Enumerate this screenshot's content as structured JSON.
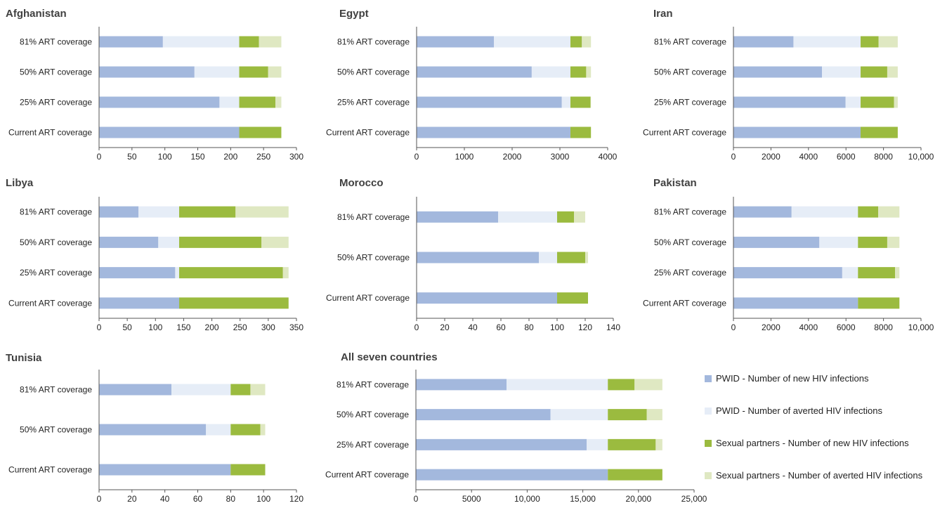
{
  "colors": {
    "pwid_new": "#a3b8dd",
    "pwid_averted": "#e6edf7",
    "sp_new": "#9bbb3f",
    "sp_averted": "#dfe8c2",
    "axis": "#555555"
  },
  "legend": [
    {
      "label": "PWID - Number of new HIV infections",
      "color_key": "pwid_new"
    },
    {
      "label": "PWID - Number of averted HIV infections",
      "color_key": "pwid_averted"
    },
    {
      "label": "Sexual partners - Number of new HIV infections",
      "color_key": "sp_new"
    },
    {
      "label": "Sexual partners - Number of averted HIV infections",
      "color_key": "sp_averted"
    }
  ],
  "chart_data": [
    {
      "type": "bar",
      "title": "Afghanistan",
      "orientation": "horizontal-stacked",
      "categories": [
        "81% ART coverage",
        "50% ART coverage",
        "25% ART coverage",
        "Current ART coverage"
      ],
      "series": [
        {
          "name": "PWID - Number of new HIV infections",
          "values": [
            97,
            145,
            183,
            213
          ]
        },
        {
          "name": "PWID - Number of averted HIV infections",
          "values": [
            116,
            68,
            30,
            0
          ]
        },
        {
          "name": "Sexual partners - Number of new HIV infections",
          "values": [
            30,
            44,
            55,
            64
          ]
        },
        {
          "name": "Sexual partners - Number of averted HIV infections",
          "values": [
            34,
            20,
            9,
            0
          ]
        }
      ],
      "xlim": [
        0,
        300
      ],
      "ticks": [
        "0",
        "50",
        "100",
        "150",
        "200",
        "250",
        "300"
      ]
    },
    {
      "type": "bar",
      "title": "Egypt",
      "orientation": "horizontal-stacked",
      "categories": [
        "81% ART coverage",
        "50% ART coverage",
        "25% ART coverage",
        "Current ART coverage"
      ],
      "series": [
        {
          "name": "PWID - Number of new HIV infections",
          "values": [
            1620,
            2410,
            3040,
            3220
          ]
        },
        {
          "name": "PWID - Number of averted HIV infections",
          "values": [
            1600,
            810,
            180,
            0
          ]
        },
        {
          "name": "Sexual partners - Number of new HIV infections",
          "values": [
            240,
            330,
            420,
            430
          ]
        },
        {
          "name": "Sexual partners - Number of averted HIV infections",
          "values": [
            190,
            100,
            10,
            0
          ]
        }
      ],
      "xlim": [
        0,
        4000
      ],
      "ticks": [
        "0",
        "1000",
        "2000",
        "3000",
        "4000"
      ]
    },
    {
      "type": "bar",
      "title": "Iran",
      "orientation": "horizontal-stacked",
      "categories": [
        "81% ART coverage",
        "50% ART coverage",
        "25% ART coverage",
        "Current ART coverage"
      ],
      "series": [
        {
          "name": "PWID - Number of new HIV infections",
          "values": [
            3200,
            4720,
            5980,
            6780
          ]
        },
        {
          "name": "PWID - Number of averted HIV infections",
          "values": [
            3580,
            2060,
            800,
            0
          ]
        },
        {
          "name": "Sexual partners - Number of new HIV infections",
          "values": [
            960,
            1420,
            1780,
            1980
          ]
        },
        {
          "name": "Sexual partners - Number of averted HIV infections",
          "values": [
            1020,
            560,
            200,
            0
          ]
        }
      ],
      "xlim": [
        0,
        10000
      ],
      "ticks": [
        "0",
        "2000",
        "4000",
        "6000",
        "8000",
        "10,000"
      ]
    },
    {
      "type": "bar",
      "title": "Libya",
      "orientation": "horizontal-stacked",
      "categories": [
        "81% ART coverage",
        "50% ART coverage",
        "25% ART coverage",
        "Current ART coverage"
      ],
      "series": [
        {
          "name": "PWID - Number of new HIV infections",
          "values": [
            70,
            105,
            135,
            142
          ]
        },
        {
          "name": "PWID - Number of averted HIV infections",
          "values": [
            72,
            37,
            7,
            0
          ]
        },
        {
          "name": "Sexual partners - Number of new HIV infections",
          "values": [
            100,
            146,
            184,
            194
          ]
        },
        {
          "name": "Sexual partners - Number of averted HIV infections",
          "values": [
            94,
            48,
            10,
            0
          ]
        }
      ],
      "xlim": [
        0,
        350
      ],
      "ticks": [
        "0",
        "50",
        "100",
        "150",
        "200",
        "250",
        "300",
        "350"
      ]
    },
    {
      "type": "bar",
      "title": "Morocco",
      "orientation": "horizontal-stacked",
      "categories": [
        "81% ART coverage",
        "50% ART coverage",
        "Current ART coverage"
      ],
      "series": [
        {
          "name": "PWID - Number of new HIV infections",
          "values": [
            58,
            87,
            100
          ]
        },
        {
          "name": "PWID - Number of averted HIV infections",
          "values": [
            42,
            13,
            0
          ]
        },
        {
          "name": "Sexual partners - Number of new HIV infections",
          "values": [
            12,
            20,
            22
          ]
        },
        {
          "name": "Sexual partners - Number of averted HIV infections",
          "values": [
            8,
            2,
            0
          ]
        }
      ],
      "xlim": [
        0,
        140
      ],
      "ticks": [
        "0",
        "20",
        "40",
        "60",
        "80",
        "100",
        "120",
        "140"
      ]
    },
    {
      "type": "bar",
      "title": "Pakistan",
      "orientation": "horizontal-stacked",
      "categories": [
        "81% ART coverage",
        "50% ART coverage",
        "25% ART coverage",
        "Current ART coverage"
      ],
      "series": [
        {
          "name": "PWID - Number of new HIV infections",
          "values": [
            3100,
            4580,
            5800,
            6640
          ]
        },
        {
          "name": "PWID - Number of averted HIV infections",
          "values": [
            3540,
            2060,
            840,
            0
          ]
        },
        {
          "name": "Sexual partners - Number of new HIV infections",
          "values": [
            1080,
            1560,
            1980,
            2210
          ]
        },
        {
          "name": "Sexual partners - Number of averted HIV infections",
          "values": [
            1130,
            650,
            230,
            0
          ]
        }
      ],
      "xlim": [
        0,
        10000
      ],
      "ticks": [
        "0",
        "2000",
        "4000",
        "6000",
        "8000",
        "10,000"
      ]
    },
    {
      "type": "bar",
      "title": "Tunisia",
      "orientation": "horizontal-stacked",
      "categories": [
        "81% ART coverage",
        "50% ART coverage",
        "Current ART coverage"
      ],
      "series": [
        {
          "name": "PWID - Number of new HIV infections",
          "values": [
            44,
            65,
            80
          ]
        },
        {
          "name": "PWID - Number of averted HIV infections",
          "values": [
            36,
            15,
            0
          ]
        },
        {
          "name": "Sexual partners - Number of new HIV infections",
          "values": [
            12,
            18,
            21
          ]
        },
        {
          "name": "Sexual partners - Number of averted HIV infections",
          "values": [
            9,
            3,
            0
          ]
        }
      ],
      "xlim": [
        0,
        120
      ],
      "ticks": [
        "0",
        "20",
        "40",
        "60",
        "80",
        "100",
        "120"
      ]
    },
    {
      "type": "bar",
      "title": "All seven countries",
      "orientation": "horizontal-stacked",
      "categories": [
        "81% ART coverage",
        "50% ART coverage",
        "25% ART coverage",
        "Current ART coverage"
      ],
      "series": [
        {
          "name": "PWID - Number of new HIV infections",
          "values": [
            8150,
            12100,
            15350,
            17250
          ]
        },
        {
          "name": "PWID - Number of averted HIV infections",
          "values": [
            9100,
            5150,
            1900,
            0
          ]
        },
        {
          "name": "Sexual partners - Number of new HIV infections",
          "values": [
            2400,
            3500,
            4300,
            4900
          ]
        },
        {
          "name": "Sexual partners - Number of averted HIV infections",
          "values": [
            2500,
            1400,
            600,
            0
          ]
        }
      ],
      "xlim": [
        0,
        25000
      ],
      "ticks": [
        "0",
        "5000",
        "10,000",
        "15,000",
        "20,000",
        "25,000"
      ]
    }
  ]
}
